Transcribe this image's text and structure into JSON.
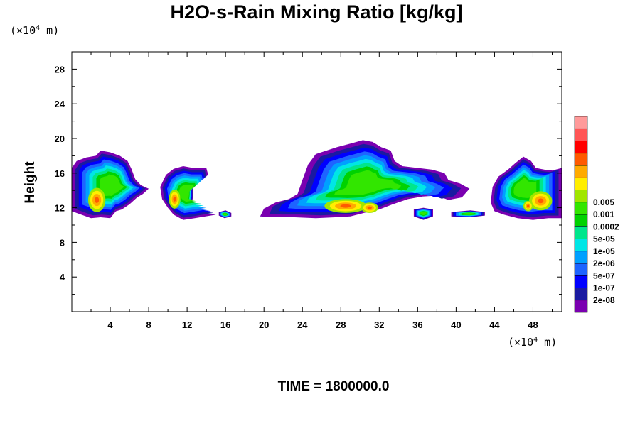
{
  "chart_data": {
    "type": "heatmap",
    "title": "H2O-s-Rain Mixing Ratio [kg/kg]",
    "ylabel": "Height",
    "xlabel": "",
    "x_units": {
      "pre": "(×10",
      "sup": "4",
      "post": " m)"
    },
    "y_units": {
      "pre": "(×10",
      "sup": "4",
      "post": " m)"
    },
    "xlim": [
      0,
      51
    ],
    "ylim": [
      0,
      30
    ],
    "x_ticks": [
      4,
      8,
      12,
      16,
      20,
      24,
      28,
      32,
      36,
      40,
      44,
      48
    ],
    "y_ticks": [
      4,
      8,
      12,
      16,
      20,
      24,
      28
    ],
    "grid": false,
    "colorbar": {
      "levels": [
        "2e-08",
        "1e-07",
        "5e-07",
        "2e-06",
        "1e-05",
        "5e-05",
        "0.0002",
        "0.001",
        "0.005"
      ],
      "colors": [
        "#7a00b0",
        "#1a1aa0",
        "#0000ff",
        "#1e64ff",
        "#00a0ff",
        "#00e6e6",
        "#00e68c",
        "#00d200",
        "#32e600",
        "#a0e600",
        "#ffee00",
        "#ffaa00",
        "#ff5a00",
        "#ff0000",
        "#ff5555",
        "#ff9a9a"
      ]
    },
    "clouds": [
      {
        "name": "cloud-west",
        "top": [
          [
            0.0,
            16.6
          ],
          [
            0.5,
            17.4
          ],
          [
            1.5,
            17.8
          ],
          [
            2.5,
            18.0
          ],
          [
            3.0,
            18.6
          ],
          [
            4.0,
            18.4
          ],
          [
            5.0,
            18.0
          ],
          [
            5.8,
            17.4
          ],
          [
            6.2,
            16.5
          ],
          [
            6.6,
            15.3
          ],
          [
            7.2,
            14.6
          ],
          [
            8.0,
            14.2
          ]
        ],
        "bottom": [
          [
            8.0,
            14.2
          ],
          [
            7.4,
            13.6
          ],
          [
            6.8,
            13.2
          ],
          [
            6.0,
            12.4
          ],
          [
            5.2,
            11.8
          ],
          [
            4.6,
            11.6
          ],
          [
            4.0,
            10.8
          ],
          [
            3.0,
            10.9
          ],
          [
            2.0,
            10.8
          ],
          [
            1.0,
            11.2
          ],
          [
            0.0,
            11.6
          ]
        ],
        "cores": [
          {
            "x": 2.6,
            "y": 12.9,
            "rx": 0.9,
            "ry": 1.4
          }
        ]
      },
      {
        "name": "cloud-west-2",
        "top": [
          [
            9.2,
            14.4
          ],
          [
            9.8,
            15.8
          ],
          [
            10.6,
            16.5
          ],
          [
            11.6,
            16.8
          ],
          [
            12.6,
            16.6
          ],
          [
            14.0,
            16.6
          ],
          [
            14.2,
            15.8
          ],
          [
            13.2,
            15.0
          ],
          [
            12.6,
            14.2
          ],
          [
            12.6,
            13.2
          ]
        ],
        "bottom": [
          [
            12.6,
            13.2
          ],
          [
            12.4,
            11.6
          ],
          [
            13.6,
            11.4
          ],
          [
            15.0,
            11.2
          ],
          [
            12.8,
            10.8
          ],
          [
            11.6,
            10.6
          ],
          [
            10.6,
            11.2
          ],
          [
            10.0,
            12.0
          ],
          [
            9.4,
            13.0
          ]
        ],
        "cores": [
          {
            "x": 10.7,
            "y": 13.0,
            "rx": 0.6,
            "ry": 1.1
          }
        ]
      },
      {
        "name": "cloud-center",
        "top": [
          [
            24.0,
            15.2
          ],
          [
            24.6,
            17.0
          ],
          [
            25.4,
            18.2
          ],
          [
            26.5,
            18.6
          ],
          [
            27.6,
            19.0
          ],
          [
            29.0,
            19.4
          ],
          [
            30.3,
            19.8
          ],
          [
            31.3,
            19.6
          ],
          [
            32.2,
            19.0
          ],
          [
            33.2,
            18.6
          ],
          [
            33.6,
            17.4
          ],
          [
            34.4,
            16.8
          ],
          [
            36.0,
            16.6
          ],
          [
            37.5,
            16.4
          ],
          [
            38.8,
            16.0
          ],
          [
            39.2,
            15.2
          ],
          [
            40.4,
            14.8
          ],
          [
            41.4,
            14.2
          ]
        ],
        "bottom": [
          [
            41.4,
            14.2
          ],
          [
            40.6,
            13.2
          ],
          [
            39.2,
            12.9
          ],
          [
            38.0,
            13.4
          ],
          [
            36.5,
            13.3
          ],
          [
            35.0,
            13.0
          ],
          [
            33.4,
            12.4
          ],
          [
            32.0,
            11.8
          ],
          [
            30.4,
            11.4
          ],
          [
            29.0,
            11.0
          ],
          [
            27.4,
            10.9
          ],
          [
            25.4,
            10.8
          ],
          [
            23.2,
            10.9
          ],
          [
            21.0,
            10.9
          ],
          [
            19.6,
            11.0
          ],
          [
            20.0,
            11.9
          ],
          [
            21.2,
            12.6
          ],
          [
            22.6,
            13.0
          ],
          [
            23.5,
            13.6
          ]
        ],
        "cores": [
          {
            "x": 28.5,
            "y": 12.2,
            "rx": 2.2,
            "ry": 0.8
          },
          {
            "x": 31.0,
            "y": 12.0,
            "rx": 0.9,
            "ry": 0.6
          }
        ]
      },
      {
        "name": "cloud-east",
        "top": [
          [
            44.4,
            15.6
          ],
          [
            45.4,
            16.4
          ],
          [
            46.2,
            17.2
          ],
          [
            47.0,
            17.9
          ],
          [
            47.8,
            17.4
          ],
          [
            48.3,
            16.6
          ],
          [
            49.2,
            16.4
          ],
          [
            50.0,
            16.3
          ],
          [
            51.0,
            16.6
          ]
        ],
        "bottom": [
          [
            51.0,
            10.8
          ],
          [
            49.6,
            10.8
          ],
          [
            48.0,
            10.6
          ],
          [
            46.4,
            10.8
          ],
          [
            45.0,
            11.2
          ],
          [
            44.0,
            11.6
          ],
          [
            43.6,
            12.6
          ],
          [
            43.8,
            14.4
          ]
        ],
        "cores": [
          {
            "x": 48.8,
            "y": 12.8,
            "rx": 1.2,
            "ry": 1.1
          },
          {
            "x": 47.5,
            "y": 12.2,
            "rx": 0.5,
            "ry": 0.6
          }
        ]
      },
      {
        "name": "cloud-fragment-1",
        "top": [
          [
            15.3,
            11.5
          ],
          [
            16.0,
            11.7
          ],
          [
            16.6,
            11.4
          ]
        ],
        "bottom": [
          [
            16.6,
            11.0
          ],
          [
            15.9,
            10.8
          ],
          [
            15.3,
            11.1
          ]
        ],
        "cores": []
      },
      {
        "name": "cloud-fragment-2",
        "top": [
          [
            35.6,
            11.8
          ],
          [
            36.6,
            12.0
          ],
          [
            37.6,
            11.8
          ]
        ],
        "bottom": [
          [
            37.6,
            11.0
          ],
          [
            36.6,
            10.6
          ],
          [
            35.6,
            11.0
          ]
        ],
        "cores": []
      },
      {
        "name": "cloud-fragment-3",
        "top": [
          [
            39.5,
            11.5
          ],
          [
            41.5,
            11.7
          ],
          [
            43.0,
            11.5
          ]
        ],
        "bottom": [
          [
            43.0,
            11.1
          ],
          [
            41.5,
            10.9
          ],
          [
            39.5,
            11.0
          ]
        ],
        "cores": []
      }
    ],
    "time_label": "TIME = 1800000.0"
  }
}
